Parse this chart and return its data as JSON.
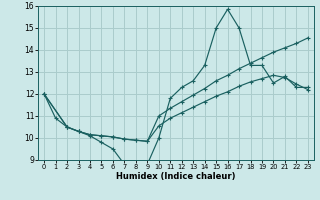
{
  "xlabel": "Humidex (Indice chaleur)",
  "xlim": [
    -0.5,
    23.5
  ],
  "ylim": [
    9,
    16
  ],
  "yticks": [
    9,
    10,
    11,
    12,
    13,
    14,
    15,
    16
  ],
  "xticks": [
    0,
    1,
    2,
    3,
    4,
    5,
    6,
    7,
    8,
    9,
    10,
    11,
    12,
    13,
    14,
    15,
    16,
    17,
    18,
    19,
    20,
    21,
    22,
    23
  ],
  "bg_color": "#cce8e8",
  "grid_color": "#aacccc",
  "line_color": "#1a6060",
  "line1_x": [
    0,
    1,
    2,
    3,
    4,
    5,
    6,
    7,
    8,
    9,
    10,
    11,
    12,
    13,
    14,
    15,
    16,
    17,
    18,
    19,
    20,
    21,
    22,
    23
  ],
  "line1_y": [
    12.0,
    10.9,
    10.5,
    10.3,
    10.1,
    9.8,
    9.5,
    8.8,
    8.8,
    8.8,
    10.0,
    11.8,
    12.3,
    12.6,
    13.3,
    15.0,
    15.85,
    15.0,
    13.3,
    13.3,
    12.5,
    12.8,
    12.3,
    12.3
  ],
  "line2_x": [
    0,
    2,
    3,
    4,
    5,
    6,
    7,
    8,
    9,
    10,
    11,
    12,
    13,
    14,
    15,
    16,
    17,
    18,
    19,
    20,
    21,
    22,
    23
  ],
  "line2_y": [
    12.0,
    10.5,
    10.3,
    10.15,
    10.1,
    10.05,
    9.95,
    9.9,
    9.85,
    11.0,
    11.35,
    11.65,
    11.95,
    12.25,
    12.6,
    12.85,
    13.15,
    13.4,
    13.65,
    13.9,
    14.1,
    14.3,
    14.55
  ],
  "line3_x": [
    0,
    2,
    3,
    4,
    5,
    6,
    7,
    8,
    9,
    10,
    11,
    12,
    13,
    14,
    15,
    16,
    17,
    18,
    19,
    20,
    21,
    22,
    23
  ],
  "line3_y": [
    12.0,
    10.5,
    10.3,
    10.15,
    10.1,
    10.05,
    9.95,
    9.9,
    9.85,
    10.55,
    10.9,
    11.15,
    11.4,
    11.65,
    11.9,
    12.1,
    12.35,
    12.55,
    12.7,
    12.85,
    12.75,
    12.45,
    12.2
  ]
}
